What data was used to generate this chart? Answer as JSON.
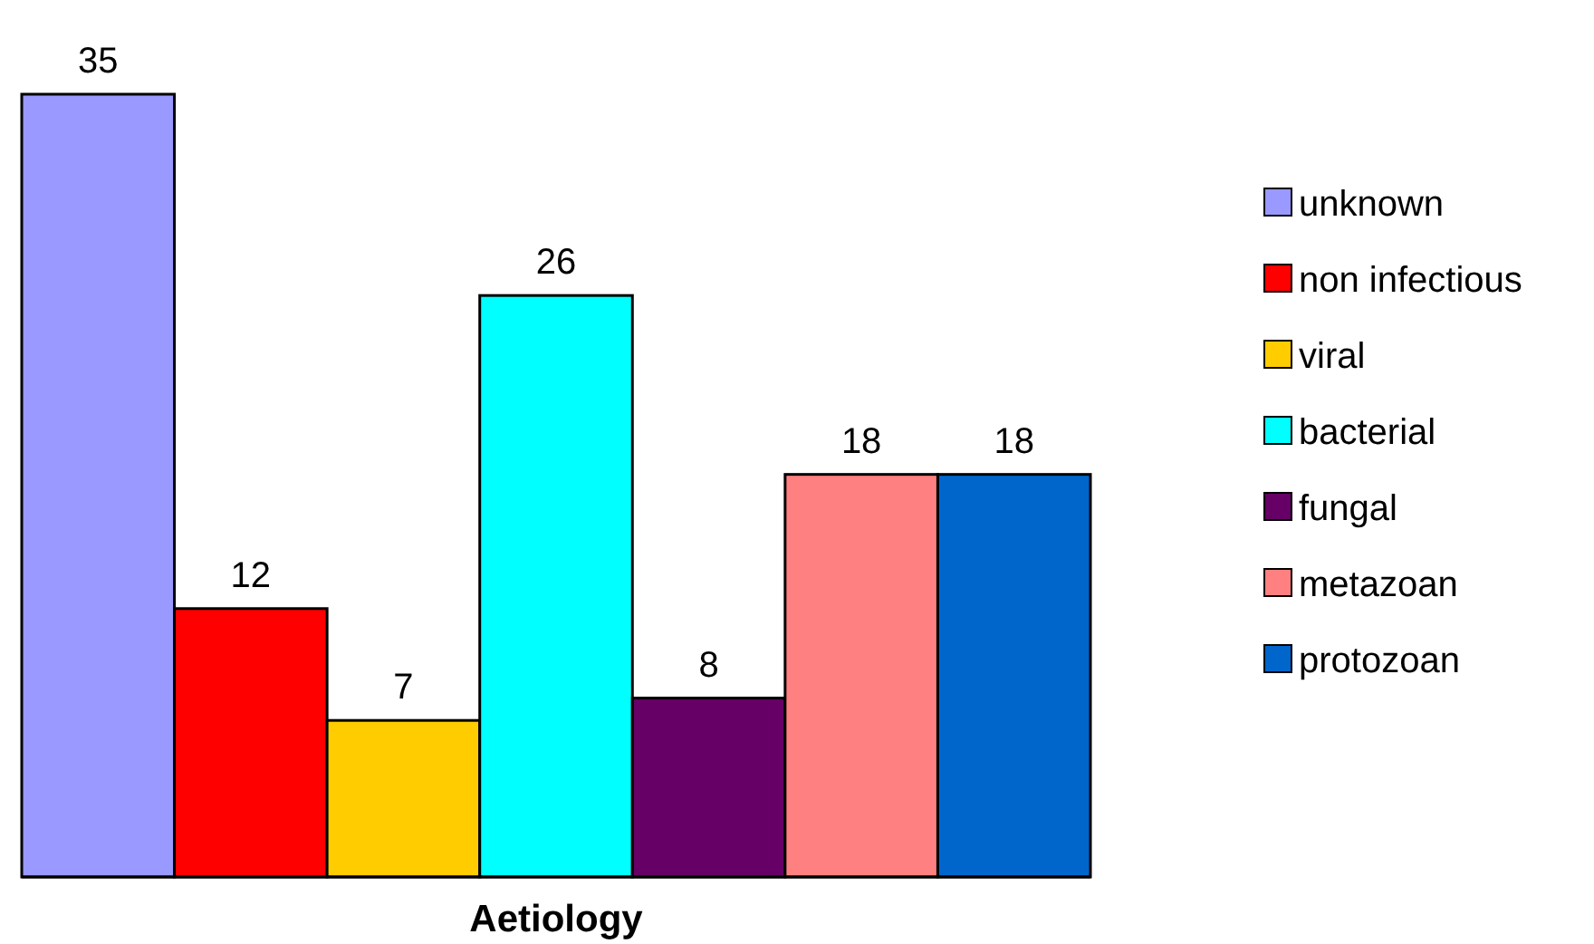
{
  "chart_data": {
    "type": "bar",
    "xlabel": "Aetiology",
    "categories": [
      null
    ],
    "data_labels": true,
    "legend": "right",
    "series": [
      {
        "name": "unknown",
        "color": "#9999ff",
        "values": [
          35
        ]
      },
      {
        "name": "non infectious",
        "color": "#ff0000",
        "values": [
          12
        ]
      },
      {
        "name": "viral",
        "color": "#ffcc00",
        "values": [
          7
        ]
      },
      {
        "name": "bacterial",
        "color": "#00ffff",
        "values": [
          26
        ]
      },
      {
        "name": "fungal",
        "color": "#660066",
        "values": [
          8
        ]
      },
      {
        "name": "metazoan",
        "color": "#ff8080",
        "values": [
          18
        ]
      },
      {
        "name": "protozoan",
        "color": "#0066cc",
        "values": [
          18
        ]
      }
    ]
  }
}
